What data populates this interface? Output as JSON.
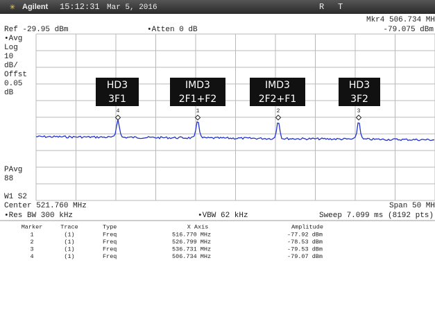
{
  "status_bar": {
    "brand": "Agilent",
    "time": "15:12:31",
    "date": "Mar 5, 2016",
    "flags": [
      "R",
      "T"
    ]
  },
  "header": {
    "ref": "Ref -29.95 dBm",
    "atten": "•Atten 0 dB",
    "marker_readout": "Mkr4 506.734 MH",
    "marker_amplitude": "-79.075 dBm"
  },
  "left_labels": [
    "•Avg",
    "Log",
    "10",
    "dB/",
    "Offst",
    "0.05",
    "dB"
  ],
  "left_labels_bottom": [
    "PAvg",
    "88",
    "W1 S2"
  ],
  "annotations": [
    {
      "line1": "HD3",
      "line2": "3F1"
    },
    {
      "line1": "IMD3",
      "line2": "2F1+F2"
    },
    {
      "line1": "IMD3",
      "line2": "2F2+F1"
    },
    {
      "line1": "HD3",
      "line2": "3F2"
    }
  ],
  "trace_markers": [
    "4",
    "1",
    "2",
    "3"
  ],
  "footer": {
    "center": "Center 521.760 MHz",
    "span": "Span 50 MH",
    "res_bw": "•Res BW 300 kHz",
    "vbw": "•VBW 62 kHz",
    "sweep": "Sweep 7.099 ms (8192 pts)"
  },
  "marker_table": {
    "columns": [
      "Marker",
      "Trace",
      "Type",
      "X Axis",
      "Amplitude"
    ],
    "rows": [
      [
        "1",
        "(1)",
        "Freq",
        "516.770 MHz",
        "-77.92 dBm"
      ],
      [
        "2",
        "(1)",
        "Freq",
        "526.799 MHz",
        "-78.53 dBm"
      ],
      [
        "3",
        "(1)",
        "Freq",
        "536.731 MHz",
        "-79.53 dBm"
      ],
      [
        "4",
        "(1)",
        "Freq",
        "506.734 MHz",
        "-79.07 dBm"
      ]
    ]
  }
}
